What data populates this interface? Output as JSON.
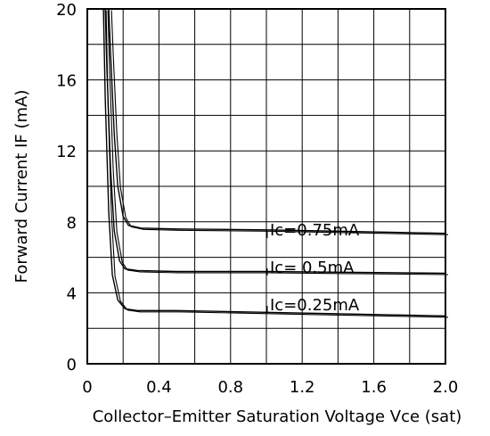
{
  "chart_data": {
    "type": "line",
    "title": "",
    "xlabel": "Collector–Emitter Saturation Voltage Vce (sat)",
    "ylabel": "Forward Current IF (mA)",
    "xlim": [
      0,
      2.0
    ],
    "ylim": [
      0,
      20
    ],
    "x_ticks": [
      "0",
      "0.4",
      "0.8",
      "1.2",
      "1.6",
      "2.0"
    ],
    "y_ticks": [
      "0",
      "4",
      "8",
      "12",
      "16",
      "20"
    ],
    "grid": true,
    "series": [
      {
        "name": "Ic=0.75mA",
        "x": [
          0.12,
          0.13,
          0.15,
          0.17,
          0.2,
          0.23,
          0.3,
          0.5,
          1.0,
          1.5,
          2.0
        ],
        "y": [
          20,
          17.5,
          13.0,
          10.0,
          8.3,
          7.8,
          7.65,
          7.6,
          7.55,
          7.45,
          7.35
        ]
      },
      {
        "name": "Ic=  0.5mA",
        "x": [
          0.1,
          0.11,
          0.13,
          0.15,
          0.18,
          0.21,
          0.28,
          0.5,
          1.0,
          1.5,
          2.0
        ],
        "y": [
          20,
          16.5,
          11.0,
          7.5,
          5.8,
          5.35,
          5.25,
          5.2,
          5.2,
          5.15,
          5.1
        ]
      },
      {
        "name": "Ic=0.25mA",
        "x": [
          0.09,
          0.1,
          0.12,
          0.14,
          0.17,
          0.21,
          0.28,
          0.5,
          1.0,
          1.5,
          2.0
        ],
        "y": [
          20,
          15.0,
          8.5,
          5.0,
          3.6,
          3.1,
          3.0,
          3.0,
          2.9,
          2.8,
          2.7
        ]
      }
    ]
  }
}
